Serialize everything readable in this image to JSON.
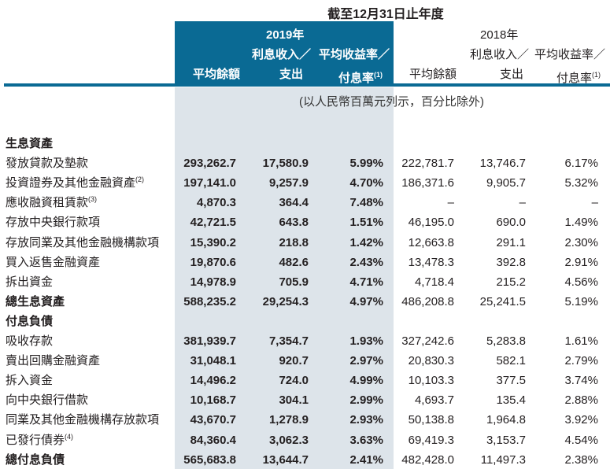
{
  "title": "截至12月31日止年度",
  "unit_note": "(以人民幣百萬元列示，百分比除外)",
  "headers": {
    "y2019": {
      "year": "2019年",
      "avg_balance": "平均餘額",
      "interest_l1": "利息收入／",
      "interest_l2": "支出",
      "yield_l1": "平均收益率／",
      "yield_l2": "付息率",
      "yield_note": "(1)"
    },
    "y2018": {
      "year": "2018年",
      "avg_balance": "平均餘額",
      "interest_l1": "利息收入／",
      "interest_l2": "支出",
      "yield_l1": "平均收益率／",
      "yield_l2": "付息率",
      "yield_note": "(1)"
    }
  },
  "rows": [
    {
      "label": "生息資產",
      "note": "",
      "bold": true,
      "v": [
        "",
        "",
        "",
        "",
        "",
        ""
      ]
    },
    {
      "label": "發放貸款及墊款",
      "note": "",
      "v": [
        "293,262.7",
        "17,580.9",
        "5.99%",
        "222,781.7",
        "13,746.7",
        "6.17%"
      ]
    },
    {
      "label": "投資證券及其他金融資產",
      "note": "(2)",
      "v": [
        "197,141.0",
        "9,257.9",
        "4.70%",
        "186,371.6",
        "9,905.7",
        "5.32%"
      ]
    },
    {
      "label": "應收融資租賃款",
      "note": "(3)",
      "v": [
        "4,870.3",
        "364.4",
        "7.48%",
        "–",
        "–",
        "–"
      ]
    },
    {
      "label": "存放中央銀行款項",
      "note": "",
      "v": [
        "42,721.5",
        "643.8",
        "1.51%",
        "46,195.0",
        "690.0",
        "1.49%"
      ]
    },
    {
      "label": "存放同業及其他金融機構款項",
      "note": "",
      "v": [
        "15,390.2",
        "218.8",
        "1.42%",
        "12,663.8",
        "291.1",
        "2.30%"
      ]
    },
    {
      "label": "買入返售金融資產",
      "note": "",
      "v": [
        "19,870.6",
        "482.6",
        "2.43%",
        "13,478.3",
        "392.8",
        "2.91%"
      ]
    },
    {
      "label": "拆出資金",
      "note": "",
      "v": [
        "14,978.9",
        "705.9",
        "4.71%",
        "4,718.4",
        "215.2",
        "4.56%"
      ]
    },
    {
      "label": "總生息資產",
      "note": "",
      "bold": true,
      "v": [
        "588,235.2",
        "29,254.3",
        "4.97%",
        "486,208.8",
        "25,241.5",
        "5.19%"
      ]
    },
    {
      "label": "付息負債",
      "note": "",
      "bold": true,
      "v": [
        "",
        "",
        "",
        "",
        "",
        ""
      ]
    },
    {
      "label": "吸收存款",
      "note": "",
      "v": [
        "381,939.7",
        "7,354.7",
        "1.93%",
        "327,242.6",
        "5,283.8",
        "1.61%"
      ]
    },
    {
      "label": "賣出回購金融資產",
      "note": "",
      "v": [
        "31,048.1",
        "920.7",
        "2.97%",
        "20,830.3",
        "582.1",
        "2.79%"
      ]
    },
    {
      "label": "拆入資金",
      "note": "",
      "v": [
        "14,496.2",
        "724.0",
        "4.99%",
        "10,103.3",
        "377.5",
        "3.74%"
      ]
    },
    {
      "label": "向中央銀行借款",
      "note": "",
      "v": [
        "10,168.7",
        "304.1",
        "2.99%",
        "4,693.7",
        "135.4",
        "2.88%"
      ]
    },
    {
      "label": "同業及其他金融機構存放款項",
      "note": "",
      "v": [
        "43,670.7",
        "1,278.9",
        "2.93%",
        "50,138.8",
        "1,964.8",
        "3.92%"
      ]
    },
    {
      "label": "已發行債券",
      "note": "(4)",
      "v": [
        "84,360.4",
        "3,062.3",
        "3.63%",
        "69,419.3",
        "3,153.7",
        "4.54%"
      ]
    },
    {
      "label": "總付息負債",
      "note": "",
      "bold": true,
      "v": [
        "565,683.8",
        "13,644.7",
        "2.41%",
        "482,428.0",
        "11,497.3",
        "2.38%"
      ]
    }
  ],
  "colors": {
    "header_blue": "#0a6a94",
    "shade": "#dde4ea"
  }
}
